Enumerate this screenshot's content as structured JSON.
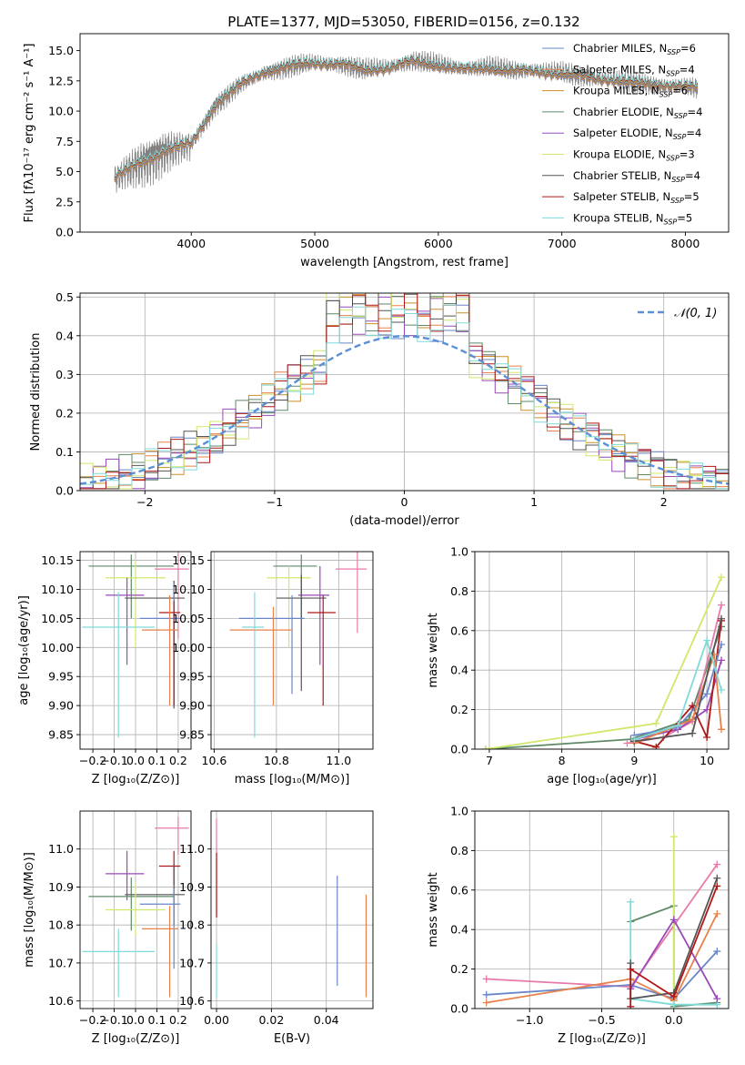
{
  "figure": {
    "title": "PLATE=1377, MJD=53050, FIBERID=0156, z=0.132"
  },
  "colors": {
    "chabrier_miles": "#6a86c8",
    "salpeter_miles": "#e8814a",
    "kroupa_miles": "#c98f2a",
    "chabrier_elodie": "#5f8a68",
    "salpeter_elodie": "#9a4ab8",
    "kroupa_elodie": "#cfe86a",
    "chabrier_stelib": "#555555",
    "salpeter_stelib": "#b01818",
    "kroupa_stelib": "#7fdad8",
    "pink": "#e87aaa",
    "normal_curve": "#5b8fd6",
    "raw_spectrum": "#808080"
  },
  "chart_data": [
    {
      "id": "spectrum",
      "type": "line",
      "xlabel": "wavelength [Angstrom, rest frame]",
      "ylabel": "Flux [fλ10⁻¹⁷ erg cm⁻² s⁻¹ A⁻¹]",
      "xlim": [
        3100,
        8350
      ],
      "ylim": [
        0,
        16.4
      ],
      "xticks": [
        4000,
        5000,
        6000,
        7000,
        8000
      ],
      "yticks": [
        0.0,
        2.5,
        5.0,
        7.5,
        10.0,
        12.5,
        15.0
      ],
      "wavelength_range": [
        3380,
        8100
      ],
      "continuum": {
        "x": [
          3380,
          3600,
          3800,
          4000,
          4200,
          4400,
          4600,
          4800,
          5000,
          5200,
          5400,
          5600,
          5800,
          6000,
          6200,
          6400,
          6600,
          6800,
          7000,
          7200,
          7400,
          7600,
          7800,
          8000,
          8100
        ],
        "y": [
          4.5,
          5.8,
          6.8,
          7.3,
          10.6,
          12.2,
          13.3,
          13.7,
          14.0,
          13.9,
          13.4,
          13.6,
          14.1,
          13.8,
          13.4,
          13.6,
          13.3,
          13.3,
          13.1,
          12.8,
          12.6,
          12.3,
          12.2,
          12.0,
          11.9
        ]
      },
      "legend": [
        "Chabrier MILES, N<sub>SSP</sub>=6",
        "Salpeter MILES, N<sub>SSP</sub>=4",
        "Kroupa MILES, N<sub>SSP</sub>=6",
        "Chabrier ELODIE, N<sub>SSP</sub>=4",
        "Salpeter ELODIE, N<sub>SSP</sub>=4",
        "Kroupa ELODIE, N<sub>SSP</sub>=3",
        "Chabrier STELIB, N<sub>SSP</sub>=4",
        "Salpeter STELIB, N<sub>SSP</sub>=5",
        "Kroupa STELIB, N<sub>SSP</sub>=5"
      ],
      "legend_placement": "top-right"
    },
    {
      "id": "residuals",
      "type": "histogram",
      "xlabel": "(data-model)/error",
      "ylabel": "Normed distribution",
      "xlim": [
        -2.5,
        2.5
      ],
      "ylim": [
        0,
        0.51
      ],
      "xticks": [
        -2,
        -1,
        0,
        1,
        2
      ],
      "yticks": [
        0.0,
        0.1,
        0.2,
        0.3,
        0.4,
        0.5
      ],
      "grid": true,
      "bin_width": 0.1,
      "legend": [
        "𝒩(0, 1)"
      ],
      "legend_placement": "top-right",
      "peak_values": [
        0.43,
        0.47,
        0.47,
        0.46,
        0.45,
        0.49,
        0.48,
        0.46,
        0.43,
        0.38
      ]
    },
    {
      "id": "age_vs_Z",
      "type": "errorbar",
      "xlabel": "Z [log₁₀(Z/Z⊙)]",
      "ylabel": "age  [log₁₀(age/yr)]",
      "xlim": [
        -0.26,
        0.26
      ],
      "ylim": [
        9.825,
        10.165
      ],
      "xticks": [
        -0.2,
        -0.1,
        0.0,
        0.1,
        0.2
      ],
      "yticks": [
        9.85,
        9.9,
        9.95,
        10.0,
        10.05,
        10.1,
        10.15
      ],
      "grid": true,
      "points": [
        {
          "c": "pink",
          "x": 0.2,
          "xerr": [
            0.11,
            0.05
          ],
          "y": 10.135,
          "yerr": [
            0.12,
            0.03
          ]
        },
        {
          "c": "chabrier_elodie",
          "x": -0.02,
          "xerr": [
            0.2,
            0.2
          ],
          "y": 10.14,
          "yerr": [
            0.09,
            0.02
          ]
        },
        {
          "c": "kroupa_elodie",
          "x": 0.0,
          "xerr": [
            0.14,
            0.14
          ],
          "y": 10.12,
          "yerr": [
            0.12,
            0.03
          ]
        },
        {
          "c": "salpeter_elodie",
          "x": -0.04,
          "xerr": [
            0.1,
            0.08
          ],
          "y": 10.09,
          "yerr": [
            0.12,
            0.03
          ]
        },
        {
          "c": "chabrier_stelib",
          "x": 0.18,
          "xerr": [
            0.23,
            0.05
          ],
          "y": 10.085,
          "yerr": [
            0.19,
            0.03
          ]
        },
        {
          "c": "chabrier_miles",
          "x": 0.18,
          "xerr": [
            0.16,
            0.03
          ],
          "y": 10.05,
          "yerr": [
            0.15,
            0.06
          ]
        },
        {
          "c": "salpeter_stelib",
          "x": 0.18,
          "xerr": [
            0.07,
            0.03
          ],
          "y": 10.06,
          "yerr": [
            0.16,
            0.02
          ]
        },
        {
          "c": "salpeter_miles",
          "x": 0.16,
          "xerr": [
            0.13,
            0.04
          ],
          "y": 10.03,
          "yerr": [
            0.13,
            0.06
          ]
        },
        {
          "c": "kroupa_stelib",
          "x": -0.08,
          "xerr": [
            0.17,
            0.17
          ],
          "y": 10.035,
          "yerr": [
            0.19,
            0.06
          ]
        }
      ]
    },
    {
      "id": "age_vs_mass",
      "type": "errorbar",
      "xlabel": "mass [log₁₀(M/M⊙)]",
      "ylabel": "",
      "xlim": [
        10.59,
        11.11
      ],
      "ylim": [
        9.825,
        10.165
      ],
      "xticks": [
        10.6,
        10.8,
        11.0
      ],
      "yticks": [
        9.85,
        9.9,
        9.95,
        10.0,
        10.05,
        10.1,
        10.15
      ],
      "grid": true,
      "points": [
        {
          "c": "pink",
          "x": 11.06,
          "xerr": [
            0.07,
            0.03
          ],
          "y": 10.135,
          "yerr": [
            0.11,
            0.03
          ]
        },
        {
          "c": "chabrier_elodie",
          "x": 10.88,
          "xerr": [
            0.09,
            0.05
          ],
          "y": 10.14,
          "yerr": [
            0.09,
            0.02
          ]
        },
        {
          "c": "kroupa_elodie",
          "x": 10.84,
          "xerr": [
            0.07,
            0.07
          ],
          "y": 10.12,
          "yerr": [
            0.12,
            0.02
          ]
        },
        {
          "c": "salpeter_elodie",
          "x": 10.94,
          "xerr": [
            0.07,
            0.03
          ],
          "y": 10.09,
          "yerr": [
            0.12,
            0.05
          ]
        },
        {
          "c": "chabrier_stelib",
          "x": 10.88,
          "xerr": [
            0.08,
            0.08
          ],
          "y": 10.085,
          "yerr": [
            0.16,
            0.04
          ]
        },
        {
          "c": "chabrier_miles",
          "x": 10.85,
          "xerr": [
            0.17,
            0.04
          ],
          "y": 10.05,
          "yerr": [
            0.13,
            0.04
          ]
        },
        {
          "c": "salpeter_stelib",
          "x": 10.95,
          "xerr": [
            0.05,
            0.04
          ],
          "y": 10.06,
          "yerr": [
            0.16,
            0.03
          ]
        },
        {
          "c": "salpeter_miles",
          "x": 10.79,
          "xerr": [
            0.14,
            0.06
          ],
          "y": 10.03,
          "yerr": [
            0.13,
            0.04
          ]
        },
        {
          "c": "kroupa_stelib",
          "x": 10.73,
          "xerr": [
            0.04,
            0.03
          ],
          "y": 10.035,
          "yerr": [
            0.19,
            0.06
          ]
        }
      ]
    },
    {
      "id": "weight_vs_age",
      "type": "line",
      "xlabel": "age  [log₁₀(age/yr)]",
      "ylabel": "mass weight",
      "xlim": [
        6.8,
        10.3
      ],
      "ylim": [
        0,
        1
      ],
      "xticks": [
        7,
        8,
        9,
        10
      ],
      "yticks": [
        0.0,
        0.2,
        0.4,
        0.6,
        0.8,
        1.0
      ],
      "grid": true,
      "series": [
        {
          "c": "chabrier_elodie",
          "x": [
            6.95,
            8.95,
            9.75,
            10.2
          ],
          "y": [
            0.0,
            0.05,
            0.15,
            0.62
          ]
        },
        {
          "c": "kroupa_elodie",
          "x": [
            6.95,
            9.3,
            10.2
          ],
          "y": [
            0.0,
            0.13,
            0.87
          ]
        },
        {
          "c": "pink",
          "x": [
            8.9,
            9.4,
            9.8,
            10.2
          ],
          "y": [
            0.03,
            0.06,
            0.14,
            0.73
          ]
        },
        {
          "c": "salpeter_elodie",
          "x": [
            9.0,
            9.6,
            10.0,
            10.2
          ],
          "y": [
            0.05,
            0.1,
            0.2,
            0.45
          ]
        },
        {
          "c": "salpeter_stelib",
          "x": [
            9.0,
            9.3,
            9.8,
            10.0,
            10.2
          ],
          "y": [
            0.04,
            0.01,
            0.22,
            0.06,
            0.65
          ]
        },
        {
          "c": "chabrier_miles",
          "x": [
            9.0,
            9.6,
            10.0,
            10.2
          ],
          "y": [
            0.07,
            0.11,
            0.28,
            0.53
          ]
        },
        {
          "c": "salpeter_miles",
          "x": [
            9.0,
            9.8,
            10.1,
            10.2
          ],
          "y": [
            0.03,
            0.15,
            0.48,
            0.1
          ]
        },
        {
          "c": "chabrier_stelib",
          "x": [
            9.0,
            9.8,
            10.2
          ],
          "y": [
            0.04,
            0.08,
            0.66
          ]
        },
        {
          "c": "kroupa_stelib",
          "x": [
            9.0,
            9.6,
            10.0,
            10.2
          ],
          "y": [
            0.05,
            0.12,
            0.55,
            0.3
          ]
        }
      ]
    },
    {
      "id": "mass_vs_Z",
      "type": "errorbar",
      "xlabel": "Z [log₁₀(Z/Z⊙)]",
      "ylabel": "mass [log₁₀(M/M⊙)]",
      "xlim": [
        -0.26,
        0.26
      ],
      "ylim": [
        10.58,
        11.1
      ],
      "xticks": [
        -0.2,
        -0.1,
        0.0,
        0.1,
        0.2
      ],
      "yticks": [
        10.6,
        10.7,
        10.8,
        10.9,
        11.0
      ],
      "grid": true,
      "points": [
        {
          "c": "pink",
          "x": 0.2,
          "xerr": [
            0.11,
            0.05
          ],
          "y": 11.055,
          "yerr": [
            0.07,
            0.03
          ]
        },
        {
          "c": "salpeter_stelib",
          "x": 0.18,
          "xerr": [
            0.07,
            0.03
          ],
          "y": 10.955,
          "yerr": [
            0.05,
            0.04
          ]
        },
        {
          "c": "salpeter_elodie",
          "x": -0.04,
          "xerr": [
            0.1,
            0.08
          ],
          "y": 10.935,
          "yerr": [
            0.07,
            0.06
          ]
        },
        {
          "c": "chabrier_elodie",
          "x": -0.02,
          "xerr": [
            0.2,
            0.2
          ],
          "y": 10.875,
          "yerr": [
            0.09,
            0.05
          ]
        },
        {
          "c": "chabrier_stelib",
          "x": 0.18,
          "xerr": [
            0.23,
            0.05
          ],
          "y": 10.88,
          "yerr": [
            0.08,
            0.08
          ]
        },
        {
          "c": "chabrier_miles",
          "x": 0.18,
          "xerr": [
            0.16,
            0.03
          ],
          "y": 10.855,
          "yerr": [
            0.17,
            0.04
          ]
        },
        {
          "c": "kroupa_elodie",
          "x": 0.0,
          "xerr": [
            0.14,
            0.14
          ],
          "y": 10.84,
          "yerr": [
            0.07,
            0.07
          ]
        },
        {
          "c": "salpeter_miles",
          "x": 0.16,
          "xerr": [
            0.13,
            0.04
          ],
          "y": 10.79,
          "yerr": [
            0.18,
            0.06
          ]
        },
        {
          "c": "kroupa_stelib",
          "x": -0.08,
          "xerr": [
            0.17,
            0.17
          ],
          "y": 10.73,
          "yerr": [
            0.12,
            0.06
          ]
        }
      ]
    },
    {
      "id": "mass_vs_ebv",
      "type": "errorbar",
      "xlabel": "E(B-V)",
      "ylabel": "",
      "xlim": [
        -0.002,
        0.057
      ],
      "ylim": [
        10.58,
        11.1
      ],
      "xticks": [
        0.0,
        0.02,
        0.04
      ],
      "yticks": [
        10.6,
        10.7,
        10.8,
        10.9,
        11.0
      ],
      "grid": true,
      "points": [
        {
          "c": "pink",
          "x": 0.0,
          "y": 10.95,
          "yerr": [
            0.13,
            0.13
          ]
        },
        {
          "c": "salpeter_stelib",
          "x": 0.0,
          "y": 10.9,
          "yerr": [
            0.08,
            0.09
          ]
        },
        {
          "c": "kroupa_stelib",
          "x": 0.0,
          "y": 10.68,
          "yerr": [
            0.07,
            0.07
          ]
        },
        {
          "c": "chabrier_miles",
          "x": 0.044,
          "y": 10.79,
          "yerr": [
            0.15,
            0.14
          ]
        },
        {
          "c": "salpeter_miles",
          "x": 0.0545,
          "y": 10.74,
          "yerr": [
            0.13,
            0.14
          ]
        }
      ]
    },
    {
      "id": "weight_vs_Z",
      "type": "line",
      "xlabel": "Z [log₁₀(Z/Z⊙)]",
      "ylabel": "mass weight",
      "xlim": [
        -1.38,
        0.38
      ],
      "ylim": [
        0,
        1
      ],
      "xticks": [
        -1.0,
        -0.5,
        0.0
      ],
      "yticks": [
        0.0,
        0.2,
        0.4,
        0.6,
        0.8,
        1.0
      ],
      "grid": true,
      "series": [
        {
          "c": "pink",
          "x": [
            -1.3,
            -0.3,
            0.3
          ],
          "y": [
            0.15,
            0.11,
            0.73
          ]
        },
        {
          "c": "chabrier_miles",
          "x": [
            -1.3,
            -0.3,
            0.0,
            0.3
          ],
          "y": [
            0.07,
            0.12,
            0.05,
            0.29
          ]
        },
        {
          "c": "salpeter_miles",
          "x": [
            -1.3,
            -0.3,
            0.0,
            0.3
          ],
          "y": [
            0.03,
            0.15,
            0.04,
            0.48
          ]
        },
        {
          "c": "chabrier_elodie",
          "x": [
            -0.3,
            0.0,
            0.0,
            0.3
          ],
          "y": [
            0.44,
            0.52,
            0.01,
            0.03
          ]
        },
        {
          "c": "kroupa_elodie",
          "x": [
            0.0,
            0.0
          ],
          "y": [
            0.0,
            0.87
          ]
        },
        {
          "c": "kroupa_stelib",
          "x": [
            -0.3,
            -0.3,
            0.0,
            0.3
          ],
          "y": [
            0.54,
            0.05,
            0.02,
            0.02
          ]
        },
        {
          "c": "salpeter_elodie",
          "x": [
            -0.3,
            0.0,
            0.3
          ],
          "y": [
            0.1,
            0.45,
            0.05
          ]
        },
        {
          "c": "chabrier_stelib",
          "x": [
            -0.3,
            -0.3,
            0.0,
            0.3
          ],
          "y": [
            0.23,
            0.05,
            0.08,
            0.66
          ]
        },
        {
          "c": "salpeter_stelib",
          "x": [
            -0.3,
            -0.3,
            0.0,
            0.3
          ],
          "y": [
            0.01,
            0.2,
            0.06,
            0.62
          ]
        }
      ]
    }
  ]
}
